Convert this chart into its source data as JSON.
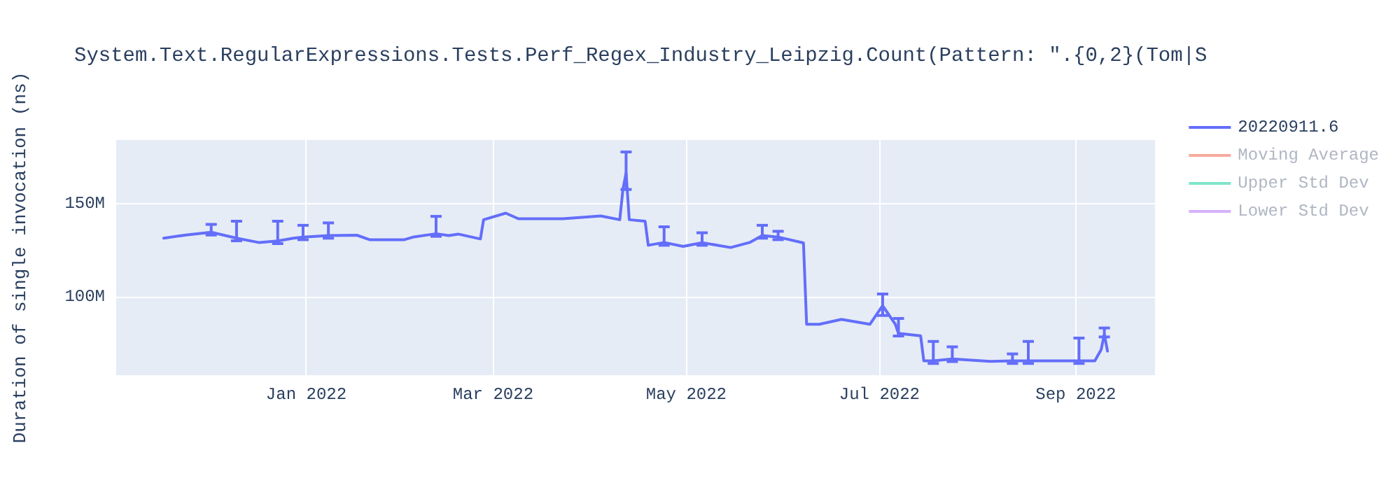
{
  "chart_data": {
    "type": "line",
    "title": "System.Text.RegularExpressions.Tests.Perf_Regex_Industry_Leipzig.Count(Pattern: \".{0,2}(Tom|S",
    "ylabel": "Duration of single invocation (ns)",
    "x": [
      "2021-11-17",
      "2021-11-24",
      "2021-12-02",
      "2021-12-10",
      "2021-12-17",
      "2021-12-23",
      "2021-12-28",
      "2021-12-31",
      "2022-01-08",
      "2022-01-17",
      "2022-01-21",
      "2022-02-01",
      "2022-02-04",
      "2022-02-11",
      "2022-02-15",
      "2022-02-18",
      "2022-02-25",
      "2022-02-26",
      "2022-03-05",
      "2022-03-09",
      "2022-03-23",
      "2022-04-04",
      "2022-04-10",
      "2022-04-11",
      "2022-04-12",
      "2022-04-13",
      "2022-04-18",
      "2022-04-19",
      "2022-04-24",
      "2022-04-30",
      "2022-05-06",
      "2022-05-15",
      "2022-05-21",
      "2022-05-25",
      "2022-05-30",
      "2022-06-07",
      "2022-06-08",
      "2022-06-12",
      "2022-06-19",
      "2022-06-28",
      "2022-07-02",
      "2022-07-06",
      "2022-07-07",
      "2022-07-14",
      "2022-07-15",
      "2022-07-18",
      "2022-07-24",
      "2022-08-05",
      "2022-08-12",
      "2022-08-17",
      "2022-08-27",
      "2022-09-02",
      "2022-09-07",
      "2022-09-09",
      "2022-09-10",
      "2022-09-11"
    ],
    "series": [
      {
        "name": "20220911.6",
        "color": "#636efa",
        "values": [
          131400000,
          133100000,
          134600000,
          131400000,
          129100000,
          129900000,
          131400000,
          132000000,
          132800000,
          133000000,
          130600000,
          130600000,
          132100000,
          133800000,
          132800000,
          133600000,
          131000000,
          141300000,
          144800000,
          141800000,
          141800000,
          143300000,
          141300000,
          157500000,
          166400000,
          141300000,
          140500000,
          127600000,
          129100000,
          127000000,
          129000000,
          126400000,
          129100000,
          132800000,
          132000000,
          128900000,
          85300000,
          85300000,
          87900000,
          85300000,
          95300000,
          85300000,
          80400000,
          79100000,
          65700000,
          65700000,
          66700000,
          65400000,
          65700000,
          65700000,
          65700000,
          65700000,
          65700000,
          71700000,
          79900000,
          70900000
        ],
        "errors": [
          null,
          null,
          [
            133100000,
            138800000
          ],
          [
            130000000,
            140500000
          ],
          null,
          [
            128500000,
            140500000
          ],
          null,
          [
            130600000,
            138300000
          ],
          [
            131400000,
            139600000
          ],
          null,
          null,
          null,
          null,
          [
            132400000,
            143100000
          ],
          null,
          null,
          null,
          null,
          null,
          null,
          null,
          null,
          null,
          null,
          [
            157500000,
            177600000
          ],
          null,
          null,
          null,
          [
            127600000,
            137500000
          ],
          null,
          [
            127600000,
            134300000
          ],
          null,
          null,
          [
            131400000,
            138300000
          ],
          [
            130600000,
            135100000
          ],
          null,
          null,
          null,
          null,
          null,
          [
            90000000,
            101500000
          ],
          null,
          [
            79000000,
            88400000
          ],
          null,
          null,
          [
            64300000,
            76100000
          ],
          [
            65300000,
            73200000
          ],
          null,
          [
            64300000,
            69400000
          ],
          [
            64300000,
            76100000
          ],
          null,
          [
            64300000,
            77900000
          ],
          null,
          null,
          [
            78500000,
            83300000
          ],
          null
        ]
      },
      {
        "name": "Moving Average",
        "color": "#ef553b",
        "values": [
          null,
          null,
          null,
          null,
          null,
          null,
          null,
          null,
          null,
          null,
          null,
          null,
          null,
          null,
          null,
          null,
          null,
          null,
          null,
          null,
          null,
          null,
          null,
          null,
          null,
          null,
          null,
          null,
          null,
          null,
          null,
          null,
          null,
          null,
          null,
          null,
          null,
          null,
          null,
          null,
          null,
          null,
          null,
          null,
          null,
          null,
          null,
          null,
          null,
          null,
          null,
          null,
          null,
          null,
          null,
          null
        ]
      },
      {
        "name": "Upper Std Dev",
        "color": "#00cc96",
        "values": [
          null,
          null,
          null,
          null,
          null,
          null,
          null,
          null,
          null,
          null,
          null,
          null,
          null,
          null,
          null,
          null,
          null,
          null,
          null,
          null,
          null,
          null,
          null,
          null,
          null,
          null,
          null,
          null,
          null,
          null,
          null,
          null,
          null,
          null,
          null,
          null,
          null,
          null,
          null,
          null,
          null,
          null,
          null,
          null,
          null,
          null,
          null,
          null,
          null,
          null,
          null,
          null,
          null,
          null,
          null,
          null
        ]
      },
      {
        "name": "Lower Std Dev",
        "color": "#ab63fa",
        "values": [
          null,
          null,
          null,
          null,
          null,
          null,
          null,
          null,
          null,
          null,
          null,
          null,
          null,
          null,
          null,
          null,
          null,
          null,
          null,
          null,
          null,
          null,
          null,
          null,
          null,
          null,
          null,
          null,
          null,
          null,
          null,
          null,
          null,
          null,
          null,
          null,
          null,
          null,
          null,
          null,
          null,
          null,
          null,
          null,
          null,
          null,
          null,
          null,
          null,
          null,
          null,
          null,
          null,
          null,
          null,
          null
        ]
      }
    ],
    "xlim": [
      "2021-11-02",
      "2022-09-26"
    ],
    "xticks": [
      {
        "value": "2022-01-01",
        "label": "Jan 2022"
      },
      {
        "value": "2022-03-01",
        "label": "Mar 2022"
      },
      {
        "value": "2022-05-01",
        "label": "May 2022"
      },
      {
        "value": "2022-07-01",
        "label": "Jul 2022"
      },
      {
        "value": "2022-09-01",
        "label": "Sep 2022"
      }
    ],
    "ylim": [
      58000000,
      184000000
    ],
    "yticks": [
      {
        "value": 100000000,
        "label": "100M"
      },
      {
        "value": 150000000,
        "label": "150M"
      }
    ],
    "grid": true,
    "legend": "top right",
    "marker": "none",
    "line_style": "solid"
  }
}
